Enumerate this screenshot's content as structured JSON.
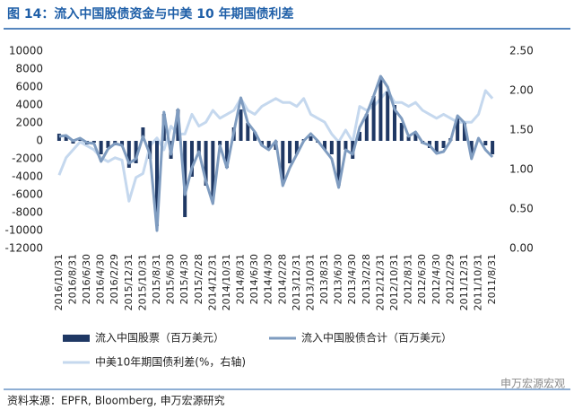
{
  "chart_data": {
    "type": "bar",
    "title": "图 14：流入中国股债资金与中美 10 年期国债利差",
    "categories": [
      "2016/10/31",
      null,
      "2016/8/31",
      null,
      "2016/6/30",
      null,
      "2016/4/30",
      null,
      "2016/2/29",
      null,
      "2015/12/31",
      null,
      "2015/10/31",
      null,
      "2015/8/31",
      null,
      "2015/6/30",
      null,
      "2015/4/30",
      null,
      "2015/2/28",
      null,
      "2014/12/31",
      null,
      "2014/10/31",
      null,
      "2014/8/31",
      null,
      "2014/6/30",
      null,
      "2014/4/30",
      null,
      "2014/2/28",
      null,
      "2013/12/31",
      null,
      "2013/10/31",
      null,
      "2013/8/31",
      null,
      "2013/6/30",
      null,
      "2013/4/30",
      null,
      "2013/2/28",
      null,
      "2012/12/31",
      null,
      "2012/10/31",
      null,
      "2012/8/31",
      null,
      "2012/6/30",
      null,
      "2012/4/30",
      null,
      "2012/2/29",
      null,
      "2011/12/31",
      null,
      "2011/10/31",
      null,
      "2011/8/31"
    ],
    "series": [
      {
        "name": "流入中国股票（百万美元）",
        "type": "bar",
        "color": "#1f3864",
        "values": [
          800,
          500,
          -300,
          300,
          -400,
          -200,
          -1500,
          -800,
          -500,
          -600,
          -3000,
          -2500,
          1500,
          -2000,
          -9500,
          3000,
          -2000,
          3500,
          -8500,
          -4000,
          -1500,
          -5000,
          -6500,
          -500,
          -3000,
          1500,
          3500,
          2000,
          1000,
          -500,
          -800,
          -1000,
          -4500,
          -2500,
          -1500,
          200,
          500,
          -200,
          -1000,
          -1500,
          -5000,
          -1000,
          -2000,
          1000,
          3000,
          5000,
          7000,
          5500,
          4000,
          2000,
          500,
          800,
          -300,
          -800,
          -1200,
          -800,
          300,
          2500,
          2000,
          -1500,
          200,
          -500,
          -1500
        ]
      },
      {
        "name": "流入中国股债合计（百万美元）",
        "type": "line",
        "color": "#7f9cc0",
        "values": [
          500,
          600,
          0,
          300,
          -200,
          -300,
          -2300,
          -900,
          -300,
          -500,
          -2500,
          -2000,
          500,
          -1500,
          -10000,
          3200,
          -1500,
          3500,
          -6000,
          -3000,
          -1200,
          -4500,
          -7000,
          -500,
          -3000,
          1000,
          4800,
          2000,
          1000,
          -500,
          -1000,
          0,
          -5000,
          -3000,
          -1500,
          0,
          800,
          0,
          -1000,
          -2000,
          -5200,
          -1000,
          -1500,
          1500,
          3000,
          5000,
          7200,
          6000,
          3500,
          2500,
          500,
          1000,
          -200,
          -500,
          -1400,
          -1200,
          0,
          2800,
          2000,
          -2000,
          300,
          -1000,
          -1800
        ]
      },
      {
        "name": "中美10年期国债利差(%，右轴)",
        "type": "line",
        "axis": "y2",
        "color": "#c5d8ee",
        "values": [
          0.93,
          1.15,
          1.25,
          1.35,
          1.3,
          1.25,
          1.15,
          1.1,
          1.15,
          1.12,
          0.6,
          0.9,
          0.95,
          1.3,
          1.4,
          1.25,
          1.55,
          1.45,
          1.45,
          1.7,
          1.55,
          1.6,
          1.75,
          1.65,
          1.7,
          1.75,
          1.9,
          1.75,
          1.7,
          1.8,
          1.85,
          1.9,
          1.85,
          1.85,
          1.8,
          1.9,
          1.7,
          1.65,
          1.6,
          1.45,
          1.35,
          1.5,
          1.35,
          1.8,
          1.75,
          1.8,
          1.9,
          2.0,
          1.85,
          1.85,
          1.8,
          1.85,
          1.75,
          1.7,
          1.65,
          1.7,
          1.65,
          1.6,
          1.6,
          1.6,
          1.7,
          2.0,
          1.9
        ]
      }
    ],
    "ylim": [
      -12000,
      10000
    ],
    "yticks": [
      -12000,
      -10000,
      -8000,
      -6000,
      -4000,
      -2000,
      0,
      2000,
      4000,
      6000,
      8000,
      10000
    ],
    "y2lim": [
      0,
      2.5
    ],
    "y2ticks": [
      {
        "value": 0,
        "label": "0.00"
      },
      {
        "value": 0.5,
        "label": "0.50"
      },
      {
        "value": 1,
        "label": "1.00"
      },
      {
        "value": 1.5,
        "label": "1.50"
      },
      {
        "value": 2,
        "label": "2.00"
      },
      {
        "value": 2.5,
        "label": "2.50"
      }
    ],
    "grid": false
  },
  "source": "资料来源：EPFR, Bloomberg, 申万宏源研究",
  "watermark": "申万宏源宏观"
}
